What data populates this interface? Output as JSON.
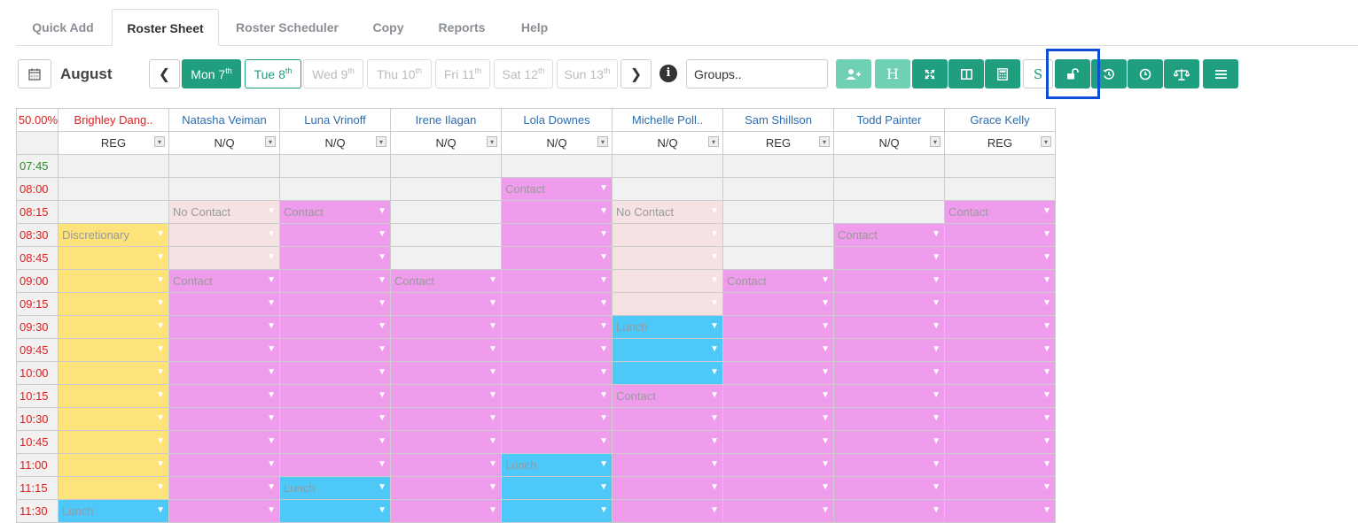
{
  "tabs": [
    "Quick Add",
    "Roster Sheet",
    "Roster Scheduler",
    "Copy",
    "Reports",
    "Help"
  ],
  "active_tab": "Roster Sheet",
  "toolbar": {
    "month": "August",
    "days": [
      {
        "label": "Mon 7",
        "sup": "th"
      },
      {
        "label": "Tue 8",
        "sup": "th"
      },
      {
        "label": "Wed 9",
        "sup": "th"
      },
      {
        "label": "Thu 10",
        "sup": "th"
      },
      {
        "label": "Fri 11",
        "sup": "th"
      },
      {
        "label": "Sat 12",
        "sup": "th"
      },
      {
        "label": "Sun 13",
        "sup": "th"
      }
    ],
    "groups_value": "Groups..",
    "buttons": [
      "add-user-icon",
      "H",
      "expand-icon",
      "columns-icon",
      "calculator-icon",
      "S",
      "unlock-icon",
      "history-icon",
      "clock-icon",
      "balance-scale-icon",
      "menu-icon"
    ]
  },
  "grid": {
    "percent": "50.00%",
    "staff": [
      {
        "name": "Brighley Dang..",
        "type": "REG"
      },
      {
        "name": "Natasha Veiman",
        "type": "N/Q"
      },
      {
        "name": "Luna Vrinoff",
        "type": "N/Q"
      },
      {
        "name": "Irene Ilagan",
        "type": "N/Q"
      },
      {
        "name": "Lola Downes",
        "type": "N/Q"
      },
      {
        "name": "Michelle Poll..",
        "type": "N/Q"
      },
      {
        "name": "Sam Shillson",
        "type": "REG"
      },
      {
        "name": "Todd Painter",
        "type": "N/Q"
      },
      {
        "name": "Grace Kelly",
        "type": "REG"
      }
    ],
    "times": [
      "07:45",
      "08:00",
      "08:15",
      "08:30",
      "08:45",
      "09:00",
      "09:15",
      "09:30",
      "09:45",
      "10:00",
      "10:15",
      "10:30",
      "10:45",
      "11:00",
      "11:15",
      "11:30"
    ],
    "rows": [
      [
        "e",
        "e",
        "e",
        "e",
        "e",
        "e",
        "e",
        "e",
        "e"
      ],
      [
        "e",
        "e",
        "e",
        "e",
        "p:Contact",
        "e",
        "e",
        "e",
        "e"
      ],
      [
        "e",
        "n:No Contact",
        "p:Contact",
        "e",
        "p",
        "n:No Contact",
        "e",
        "e",
        "p:Contact"
      ],
      [
        "y:Discretionary",
        "n",
        "p",
        "e",
        "p",
        "n",
        "e",
        "p:Contact",
        "p"
      ],
      [
        "y",
        "n",
        "p",
        "e",
        "p",
        "n",
        "e",
        "p",
        "p"
      ],
      [
        "y",
        "p:Contact",
        "p",
        "p:Contact",
        "p",
        "n",
        "p:Contact",
        "p",
        "p"
      ],
      [
        "y",
        "p",
        "p",
        "p",
        "p",
        "n",
        "p",
        "p",
        "p"
      ],
      [
        "y",
        "p",
        "p",
        "p",
        "p",
        "b:Lunch",
        "p",
        "p",
        "p"
      ],
      [
        "y",
        "p",
        "p",
        "p",
        "p",
        "b",
        "p",
        "p",
        "p"
      ],
      [
        "y",
        "p",
        "p",
        "p",
        "p",
        "b",
        "p",
        "p",
        "p"
      ],
      [
        "y",
        "p",
        "p",
        "p",
        "p",
        "p:Contact",
        "p",
        "p",
        "p"
      ],
      [
        "y",
        "p",
        "p",
        "p",
        "p",
        "p",
        "p",
        "p",
        "p"
      ],
      [
        "y",
        "p",
        "p",
        "p",
        "p",
        "p",
        "p",
        "p",
        "p"
      ],
      [
        "y",
        "p",
        "p",
        "p",
        "b:Lunch",
        "p",
        "p",
        "p",
        "p"
      ],
      [
        "y",
        "p",
        "b:Lunch",
        "p",
        "b",
        "p",
        "p",
        "p",
        "p"
      ],
      [
        "b:Lunch",
        "p",
        "b",
        "p",
        "b",
        "p",
        "p",
        "p",
        "p"
      ]
    ]
  }
}
